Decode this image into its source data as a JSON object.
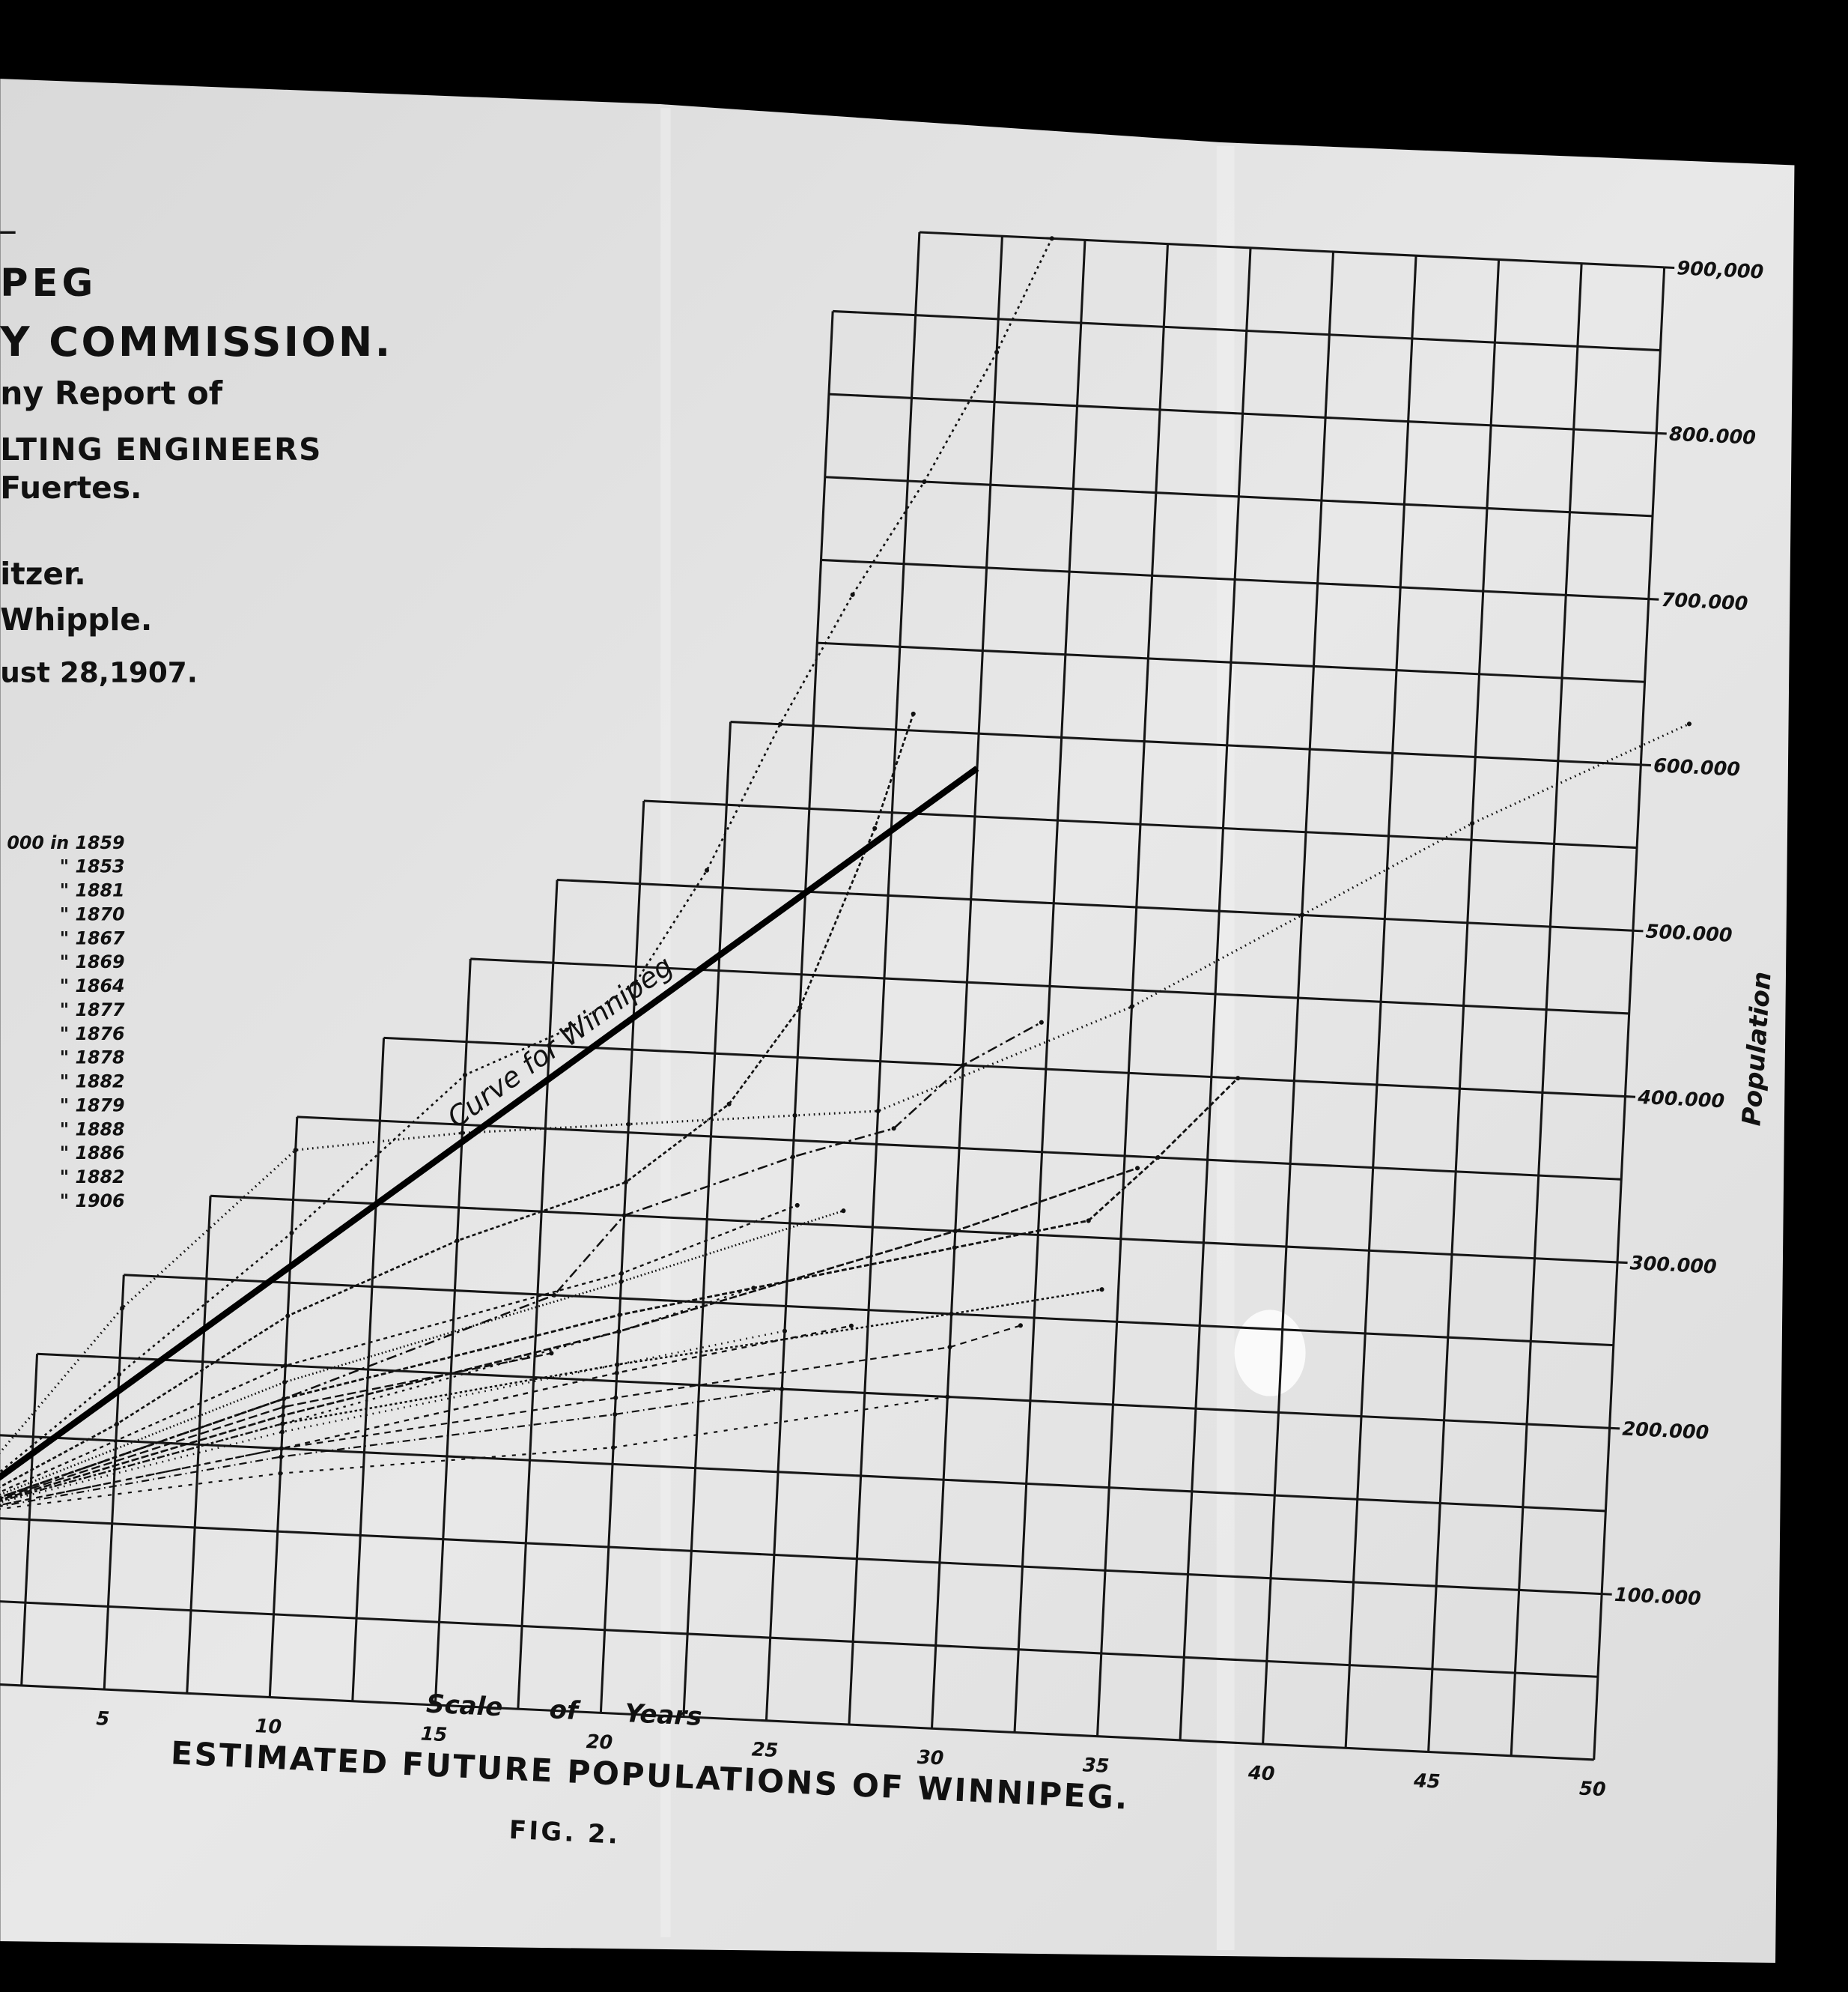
{
  "document": {
    "header_lines": [
      "PEG",
      "Y COMMISSION.",
      "ny Report of",
      "LTING ENGINEERS",
      "Fuertes.",
      "itzer.",
      "Whipple.",
      "ust 28,1907."
    ],
    "figure_label": "FIG. 2."
  },
  "chart_data": {
    "type": "line",
    "title": "ESTIMATED FUTURE POPULATIONS OF WINNIPEG.",
    "x_label": "Scale of Years",
    "y_label": "Population",
    "xlim": [
      0,
      50
    ],
    "ylim": [
      0,
      900000
    ],
    "xticks": [
      5,
      10,
      15,
      20,
      25,
      30,
      35,
      40,
      45,
      50
    ],
    "yticks": [
      {
        "value": 100000,
        "label": "100.000"
      },
      {
        "value": 200000,
        "label": "200.000"
      },
      {
        "value": 300000,
        "label": "300.000"
      },
      {
        "value": 400000,
        "label": "400.000"
      },
      {
        "value": 500000,
        "label": "500.000"
      },
      {
        "value": 600000,
        "label": "600.000"
      },
      {
        "value": 700000,
        "label": "700.000"
      },
      {
        "value": 800000,
        "label": "800.000"
      },
      {
        "value": 900000,
        "label": "900,000"
      }
    ],
    "grid": true,
    "series": [
      {
        "name": "000 in 1859",
        "color": "#111",
        "dash": "2 3",
        "linewidth": 1.6,
        "x": [
          0,
          5,
          10,
          15,
          18,
          20,
          22,
          24,
          26,
          28,
          30,
          31.5
        ],
        "values": [
          100000,
          190000,
          280000,
          380000,
          410000,
          440000,
          510000,
          600000,
          680000,
          750000,
          830000,
          900000
        ]
      },
      {
        "name": "\" 1853",
        "color": "#111",
        "dash": "3 2",
        "linewidth": 1.6,
        "x": [
          0,
          5,
          10,
          15,
          20,
          23,
          25,
          27,
          28
        ],
        "values": [
          100000,
          160000,
          230000,
          280000,
          320000,
          370000,
          430000,
          540000,
          610000
        ]
      },
      {
        "name": "\" 1881",
        "color": "#111",
        "dash": "1 3",
        "linewidth": 1.8,
        "x": [
          0,
          5,
          10,
          15,
          20,
          25,
          27.5,
          35,
          40,
          45,
          51.4
        ],
        "values": [
          100000,
          230000,
          330000,
          345000,
          355000,
          365000,
          370000,
          440000,
          500000,
          560000,
          626000
        ]
      },
      {
        "name": "\" 1870",
        "color": "#111",
        "dash": "8 3 2 3",
        "linewidth": 1.5,
        "x": [
          0,
          10,
          18,
          20,
          25,
          28,
          30,
          32.3
        ],
        "values": [
          100000,
          180000,
          250000,
          300000,
          340000,
          360000,
          400000,
          428000
        ]
      },
      {
        "name": "\" 1867",
        "color": "#111",
        "dash": "4 2",
        "linewidth": 1.7,
        "x": [
          0,
          10,
          20,
          30,
          34,
          36,
          38.3
        ],
        "values": [
          100000,
          180000,
          240000,
          290000,
          310000,
          350000,
          400000
        ]
      },
      {
        "name": "\" 1869",
        "color": "#111",
        "dash": "6 2",
        "linewidth": 1.6,
        "x": [
          0,
          10,
          20,
          30,
          35.4
        ],
        "values": [
          100000,
          170000,
          230000,
          300000,
          343000
        ]
      },
      {
        "name": "\" 1864",
        "color": "#111",
        "dash": "2 2",
        "linewidth": 1.5,
        "x": [
          0,
          10,
          20,
          30,
          34.5
        ],
        "values": [
          100000,
          165000,
          210000,
          250000,
          269000
        ]
      },
      {
        "name": "\" 1877",
        "color": "#111",
        "dash": "5 4",
        "linewidth": 1.3,
        "x": [
          0,
          10,
          20,
          30,
          32.1
        ],
        "values": [
          100000,
          150000,
          190000,
          230000,
          245000
        ]
      },
      {
        "name": "\" 1876",
        "color": "#111",
        "dash": "1 2",
        "linewidth": 1.6,
        "x": [
          0,
          10,
          20,
          26.6
        ],
        "values": [
          100000,
          190000,
          260000,
          309000
        ]
      },
      {
        "name": "\" 1878",
        "color": "#111",
        "dash": "3 3",
        "linewidth": 1.4,
        "x": [
          0,
          10,
          20,
          25.2
        ],
        "values": [
          100000,
          200000,
          265000,
          311000
        ]
      },
      {
        "name": "\" 1882",
        "color": "#111",
        "dash": "1 4",
        "linewidth": 1.5,
        "x": [
          0,
          10,
          20,
          25
        ],
        "values": [
          100000,
          160000,
          210000,
          235000
        ]
      },
      {
        "name": "\" 1879",
        "color": "#111",
        "dash": "7 3",
        "linewidth": 1.4,
        "x": [
          0,
          10,
          18
        ],
        "values": [
          100000,
          175000,
          215000
        ]
      },
      {
        "name": "\" 1888",
        "color": "#111",
        "dash": "2 4",
        "linewidth": 1.4,
        "x": [
          0,
          10,
          20,
          24
        ],
        "values": [
          100000,
          165000,
          230000,
          260000
        ]
      },
      {
        "name": "\" 1886",
        "color": "#111",
        "dash": "4 4",
        "linewidth": 1.4,
        "x": [
          0,
          10,
          20,
          27
        ],
        "values": [
          100000,
          150000,
          205000,
          240000
        ]
      },
      {
        "name": "\" 1882",
        "color": "#111",
        "dash": "6 3 1 3",
        "linewidth": 1.3,
        "x": [
          0,
          10,
          20,
          25
        ],
        "values": [
          100000,
          145000,
          180000,
          200000
        ]
      },
      {
        "name": "\" 1906",
        "color": "#111",
        "dash": "3 5",
        "linewidth": 1.3,
        "x": [
          0,
          10,
          20,
          30
        ],
        "values": [
          100000,
          135000,
          160000,
          200000
        ]
      },
      {
        "name": "Curve for Winnipeg",
        "color": "#000",
        "dash": "none",
        "linewidth": 5,
        "x": [
          0,
          30
        ],
        "values": [
          100000,
          579000
        ]
      }
    ]
  }
}
